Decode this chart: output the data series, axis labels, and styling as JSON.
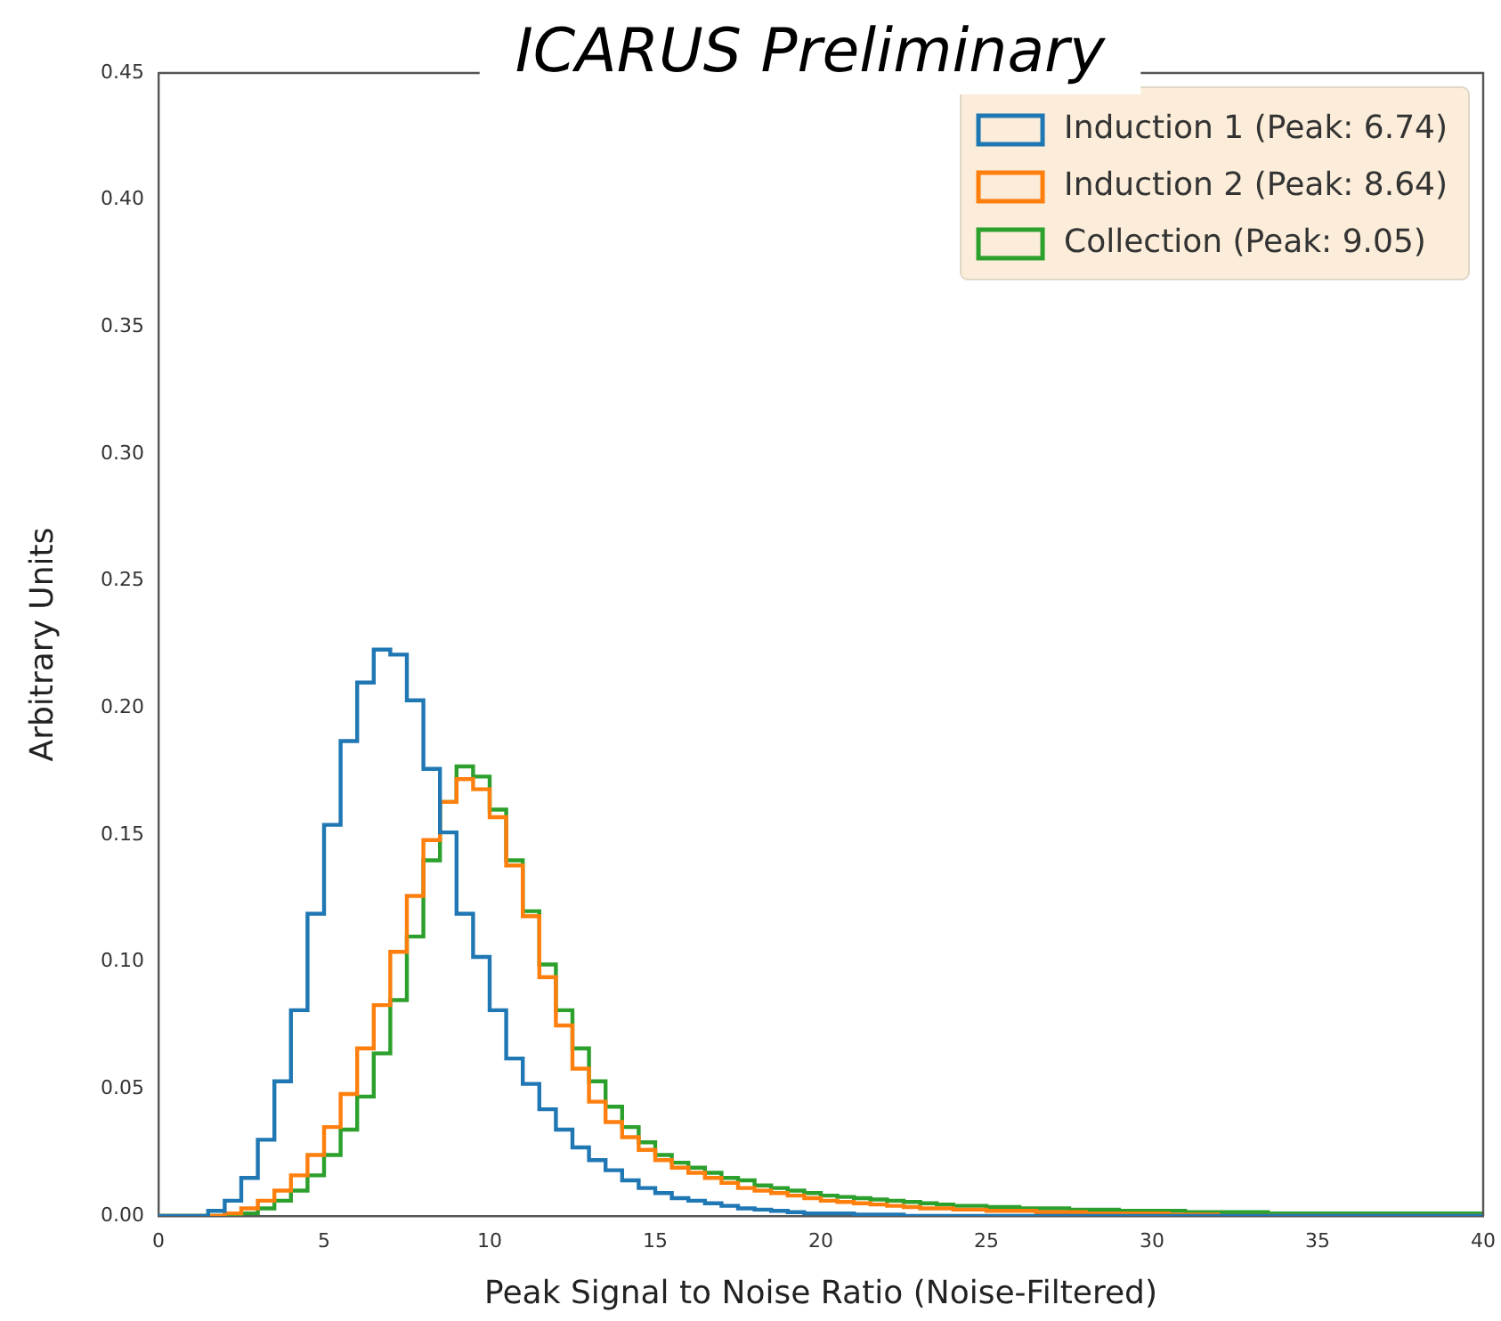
{
  "chart_data": {
    "type": "histogram",
    "title": "ICARUS Preliminary",
    "xlabel": "Peak Signal to Noise Ratio (Noise-Filtered)",
    "ylabel": "Arbitrary Units",
    "bins": [
      0,
      0.5,
      1,
      1.5,
      2,
      2.5,
      3,
      3.5,
      4,
      4.5,
      5,
      5.5,
      6,
      6.5,
      7,
      7.5,
      8,
      8.5,
      9,
      9.5,
      10,
      10.5,
      11,
      11.5,
      12,
      12.5,
      13,
      13.5,
      14,
      14.5,
      15,
      15.5,
      16,
      16.5,
      17,
      17.5,
      18,
      18.5,
      19,
      19.5,
      20,
      20.5,
      21,
      21.5,
      22,
      22.5,
      23,
      23.5,
      24,
      24.5,
      25,
      25.5,
      26,
      26.5,
      27,
      27.5,
      28,
      28.5,
      29,
      29.5,
      30,
      30.5,
      31,
      31.5,
      32,
      32.5,
      33,
      33.5,
      34,
      34.5,
      35,
      35.5,
      36,
      36.5,
      37,
      37.5,
      38,
      38.5,
      39,
      39.5,
      40
    ],
    "series": [
      {
        "name": "Induction 1 (Peak: 6.74)",
        "color": "#1f77b4",
        "values": [
          0,
          0,
          0,
          0.002,
          0.006,
          0.015,
          0.03,
          0.053,
          0.081,
          0.119,
          0.154,
          0.187,
          0.21,
          0.223,
          0.221,
          0.203,
          0.176,
          0.151,
          0.119,
          0.102,
          0.081,
          0.062,
          0.052,
          0.042,
          0.034,
          0.027,
          0.022,
          0.018,
          0.014,
          0.011,
          0.009,
          0.007,
          0.006,
          0.005,
          0.004,
          0.003,
          0.0025,
          0.002,
          0.0015,
          0.001,
          0.001,
          0.001,
          0.0005,
          0.0005,
          0.0005,
          0,
          0,
          0,
          0,
          0,
          0,
          0,
          0,
          0,
          0,
          0,
          0,
          0,
          0,
          0,
          0,
          0,
          0,
          0,
          0,
          0,
          0,
          0,
          0,
          0,
          0,
          0,
          0,
          0,
          0,
          0,
          0,
          0,
          0,
          0
        ]
      },
      {
        "name": "Induction 2 (Peak: 8.64)",
        "color": "#ff7f0e",
        "values": [
          0,
          0,
          0,
          0,
          0.001,
          0.003,
          0.006,
          0.01,
          0.016,
          0.024,
          0.035,
          0.048,
          0.066,
          0.083,
          0.104,
          0.126,
          0.148,
          0.163,
          0.172,
          0.168,
          0.157,
          0.138,
          0.118,
          0.094,
          0.075,
          0.058,
          0.045,
          0.037,
          0.031,
          0.026,
          0.022,
          0.019,
          0.017,
          0.015,
          0.013,
          0.011,
          0.01,
          0.009,
          0.008,
          0.007,
          0.006,
          0.0055,
          0.005,
          0.0045,
          0.004,
          0.0035,
          0.003,
          0.003,
          0.0025,
          0.0025,
          0.002,
          0.002,
          0.002,
          0.0015,
          0.0015,
          0.0015,
          0.001,
          0.001,
          0.001,
          0.001,
          0.001,
          0.0005,
          0.0005,
          0.0005,
          0,
          0,
          0,
          0,
          0,
          0,
          0,
          0,
          0,
          0,
          0,
          0,
          0,
          0,
          0,
          0
        ]
      },
      {
        "name": "Collection (Peak: 9.05)",
        "color": "#2ca02c",
        "values": [
          0,
          0,
          0,
          0,
          0.0005,
          0.001,
          0.003,
          0.006,
          0.01,
          0.016,
          0.024,
          0.034,
          0.047,
          0.064,
          0.085,
          0.11,
          0.14,
          0.163,
          0.177,
          0.173,
          0.16,
          0.14,
          0.12,
          0.099,
          0.081,
          0.066,
          0.053,
          0.043,
          0.035,
          0.029,
          0.024,
          0.021,
          0.019,
          0.017,
          0.015,
          0.014,
          0.012,
          0.011,
          0.01,
          0.009,
          0.008,
          0.0075,
          0.007,
          0.0065,
          0.006,
          0.0055,
          0.005,
          0.0045,
          0.004,
          0.004,
          0.0035,
          0.0035,
          0.003,
          0.003,
          0.003,
          0.0025,
          0.0025,
          0.0025,
          0.002,
          0.002,
          0.002,
          0.002,
          0.0015,
          0.0015,
          0.0015,
          0.0015,
          0.0015,
          0.001,
          0.001,
          0.001,
          0.001,
          0.001,
          0.001,
          0.001,
          0.001,
          0.001,
          0.001,
          0.001,
          0.001,
          0.001
        ]
      }
    ],
    "xlim": [
      0,
      40
    ],
    "xticks": [
      0,
      5,
      10,
      15,
      20,
      25,
      30,
      35,
      40
    ],
    "ylim": [
      0,
      0.45
    ],
    "yticks": [
      {
        "value": 0,
        "label": "0.00"
      },
      {
        "value": 0.05,
        "label": "0.05"
      },
      {
        "value": 0.1,
        "label": "0.10"
      },
      {
        "value": 0.15,
        "label": "0.15"
      },
      {
        "value": 0.2,
        "label": "0.20"
      },
      {
        "value": 0.25,
        "label": "0.25"
      },
      {
        "value": 0.3,
        "label": "0.30"
      },
      {
        "value": 0.35,
        "label": "0.35"
      },
      {
        "value": 0.4,
        "label": "0.40"
      },
      {
        "value": 0.45,
        "label": "0.45"
      }
    ],
    "grid": false,
    "legend": "top right"
  }
}
